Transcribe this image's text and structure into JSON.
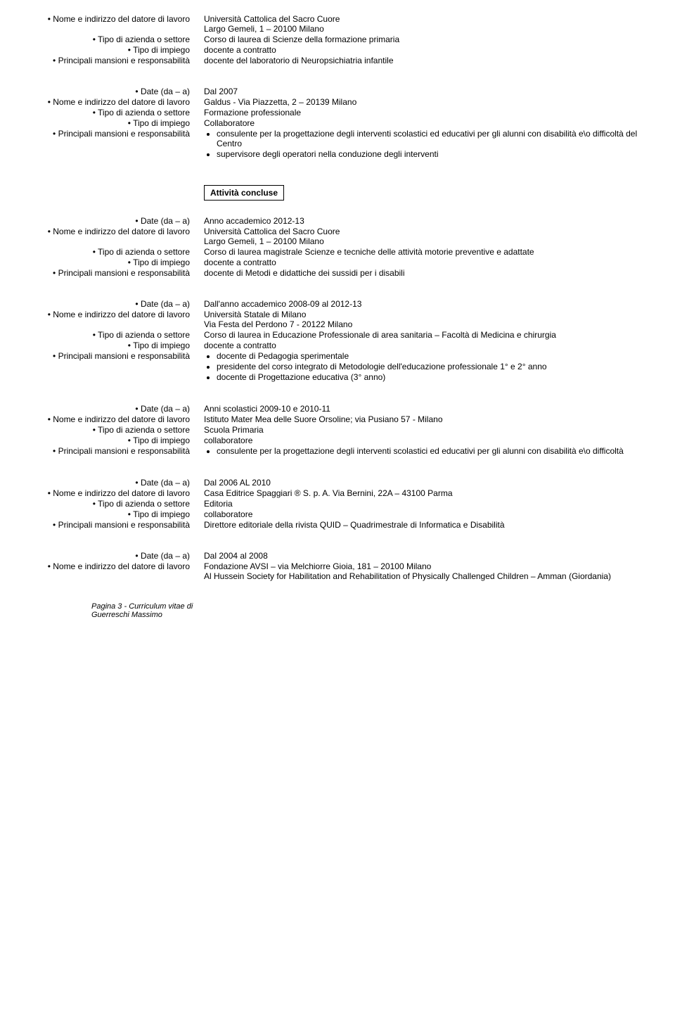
{
  "labels": {
    "date": "• Date (da – a)",
    "employer": "• Nome e indirizzo del datore di lavoro",
    "sector": "• Tipo di azienda o settore",
    "jobtype": "• Tipo di impiego",
    "duties": "• Principali mansioni e responsabilità"
  },
  "section_title": "Attività concluse",
  "entries": [
    {
      "employer1": "Università Cattolica del Sacro Cuore",
      "employer2": "Largo Gemeli, 1 – 20100 Milano",
      "sector": "Corso di laurea di Scienze della formazione primaria",
      "jobtype": "docente a contratto",
      "duties_text": "docente del laboratorio di Neuropsichiatria infantile"
    },
    {
      "date": "Dal 2007",
      "employer1": "Galdus - Via Piazzetta, 2 – 20139 Milano",
      "sector": "Formazione professionale",
      "jobtype": "Collaboratore",
      "duties_bullets": [
        "consulente per la progettazione degli interventi scolastici ed educativi per gli alunni con disabilità e\\o difficoltà del Centro",
        "supervisore degli operatori nella conduzione degli interventi"
      ]
    },
    {
      "date": "Anno accademico 2012-13",
      "employer1": "Università Cattolica del Sacro Cuore",
      "employer2": "Largo Gemeli, 1 – 20100 Milano",
      "sector": "Corso di laurea magistrale Scienze e tecniche delle attività motorie preventive e adattate",
      "jobtype": "docente a contratto",
      "duties_text": "docente di Metodi e didattiche dei sussidi per i disabili"
    },
    {
      "date": "Dall'anno accademico 2008-09 al 2012-13",
      "employer1": "Università Statale di Milano",
      "employer2": "Via Festa del Perdono 7 - 20122 Milano",
      "sector": "Corso di laurea in Educazione Professionale di area sanitaria – Facoltà di Medicina e chirurgia",
      "jobtype": "docente a contratto",
      "duties_bullets": [
        "docente di Pedagogia sperimentale",
        "presidente del corso integrato di Metodologie dell'educazione professionale 1° e 2° anno",
        "docente di Progettazione educativa (3° anno)"
      ]
    },
    {
      "date": "Anni scolastici 2009-10 e 2010-11",
      "employer1": "Istituto Mater Mea delle Suore Orsoline; via Pusiano 57 - Milano",
      "sector": "Scuola Primaria",
      "jobtype": "collaboratore",
      "duties_bullets": [
        "consulente per la progettazione degli interventi scolastici ed educativi per gli alunni con disabilità e\\o difficoltà"
      ]
    },
    {
      "date": "Dal 2006 AL 2010",
      "employer1": "Casa Editrice Spaggiari ® S. p. A. Via Bernini, 22A – 43100  Parma",
      "sector": "Editoria",
      "jobtype": "collaboratore",
      "duties_text": "Direttore editoriale della rivista QUID – Quadrimestrale di Informatica e Disabilità"
    },
    {
      "date": "Dal 2004 al 2008",
      "employer1": "Fondazione AVSI – via Melchiorre Gioia, 181 – 20100 Milano",
      "employer2": "Al Hussein Society for Habilitation and Rehabilitation of Physically Challenged Children – Amman (Giordania)"
    }
  ],
  "footer1": "Pagina 3 - Curriculum vitae di",
  "footer2": "Guerreschi Massimo"
}
